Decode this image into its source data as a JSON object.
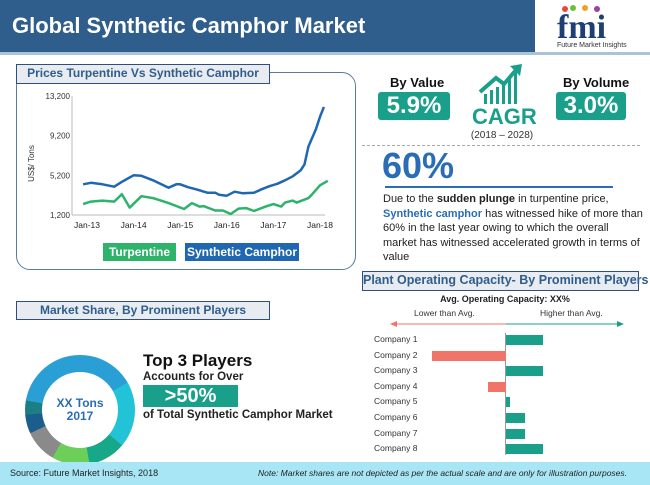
{
  "header": {
    "title": "Global Synthetic Camphor Market",
    "logo_text": "fmi",
    "logo_subtext": "Future Market Insights"
  },
  "price_panel": {
    "title": "Prices Turpentine Vs Synthetic Camphor"
  },
  "cagr": {
    "by_value_label": "By Value",
    "by_value": "5.9%",
    "label": "CAGR",
    "period": "(2018 – 2028)",
    "by_volume_label": "By Volume",
    "by_volume": "3.0%",
    "icon": "growth-chart-arrow-icon"
  },
  "highlight": {
    "value": "60%",
    "text_1": "Due to the ",
    "bold": "sudden plunge",
    "text_2": " in turpentine price, ",
    "accent": "Synthetic camphor",
    "text_3": " has witnessed hike of more than 60% in the last year owing to which the overall market has witnessed accelerated growth in terms of value"
  },
  "market_share": {
    "title": "Market Share, By Prominent Players",
    "donut_line1": "XX Tons",
    "donut_line2": "2017",
    "headline": "Top 3 Players",
    "sub": "Accounts for Over",
    "value": ">50%",
    "tail": "of Total Synthetic Camphor Market",
    "segment_colors": [
      "#2a9fd6",
      "#22c3d6",
      "#17a889",
      "#6ccf5a",
      "#8a8a8a",
      "#1b5e8e",
      "#1c7f86",
      "#2d6fb8"
    ]
  },
  "capacity": {
    "title": "Plant Operating Capacity- By Prominent Players",
    "avg": "Avg. Operating Capacity: XX%",
    "lower": "Lower than Avg.",
    "higher": "Higher than Avg."
  },
  "footer": {
    "source": "Source: Future Market Insights, 2018",
    "note": "Note: Market shares are not depicted as per the actual scale and are only for illustration purposes."
  },
  "colors": {
    "header": "#2f5d8c",
    "teal": "#1aa08a",
    "turpentine": "#2db36a",
    "camphor": "#1f67b1",
    "negative": "#f07468",
    "accent_blue": "#2a6db5"
  },
  "chart_data": [
    {
      "type": "line",
      "title": "Prices Turpentine Vs Synthetic Camphor",
      "ylabel": "US$/ Tons",
      "ylim": [
        1200,
        13200
      ],
      "yticks": [
        "13,200",
        "9,200",
        "5,200",
        "1,200"
      ],
      "ytick_values": [
        13200,
        9200,
        5200,
        1200
      ],
      "xticks": [
        "Jan-13",
        "Jan-14",
        "Jan-15",
        "Jan-16",
        "Jan-17",
        "Jan-18"
      ],
      "grid": false,
      "legend": "bottom",
      "series": [
        {
          "name": "Turpentine",
          "color": "#2db36a",
          "points": [
            [
              "2012-12",
              2300
            ],
            [
              "2013-02",
              2550
            ],
            [
              "2013-05",
              2650
            ],
            [
              "2013-08",
              2550
            ],
            [
              "2013-10",
              3300
            ],
            [
              "2013-12",
              1950
            ],
            [
              "2014-03",
              3100
            ],
            [
              "2014-06",
              2900
            ],
            [
              "2014-10",
              2400
            ],
            [
              "2015-02",
              1800
            ],
            [
              "2015-04",
              2400
            ],
            [
              "2015-06",
              2050
            ],
            [
              "2015-07",
              2100
            ],
            [
              "2015-10",
              1650
            ],
            [
              "2015-12",
              1650
            ],
            [
              "2016-02",
              1300
            ],
            [
              "2016-04",
              1850
            ],
            [
              "2016-06",
              1900
            ],
            [
              "2016-08",
              1600
            ],
            [
              "2016-11",
              2050
            ],
            [
              "2017-01",
              2300
            ],
            [
              "2017-03",
              2050
            ],
            [
              "2017-04",
              2450
            ],
            [
              "2017-06",
              2650
            ],
            [
              "2017-07",
              2450
            ],
            [
              "2017-10",
              2900
            ],
            [
              "2017-11",
              3300
            ],
            [
              "2018-01",
              4200
            ],
            [
              "2018-03",
              4650
            ]
          ]
        },
        {
          "name": "Synthetic Camphor",
          "color": "#1f67b1",
          "points": [
            [
              "2012-12",
              4300
            ],
            [
              "2013-02",
              4450
            ],
            [
              "2013-05",
              4300
            ],
            [
              "2013-08",
              4050
            ],
            [
              "2013-10",
              4550
            ],
            [
              "2014-01",
              5200
            ],
            [
              "2014-03",
              5150
            ],
            [
              "2014-06",
              4700
            ],
            [
              "2014-10",
              3950
            ],
            [
              "2014-12",
              4300
            ],
            [
              "2015-01",
              4300
            ],
            [
              "2015-03",
              4000
            ],
            [
              "2015-05",
              3800
            ],
            [
              "2015-08",
              3450
            ],
            [
              "2015-10",
              3450
            ],
            [
              "2015-11",
              3250
            ],
            [
              "2016-01",
              3150
            ],
            [
              "2016-03",
              3550
            ],
            [
              "2016-05",
              3400
            ],
            [
              "2016-08",
              3450
            ],
            [
              "2016-10",
              3800
            ],
            [
              "2016-12",
              4100
            ],
            [
              "2017-02",
              4350
            ],
            [
              "2017-04",
              4700
            ],
            [
              "2017-06",
              5100
            ],
            [
              "2017-08",
              5700
            ],
            [
              "2017-09",
              6300
            ],
            [
              "2017-10",
              8100
            ],
            [
              "2017-12",
              9900
            ],
            [
              "2018-01",
              11100
            ],
            [
              "2018-02",
              12100
            ]
          ]
        }
      ]
    },
    {
      "type": "bar",
      "orientation": "horizontal",
      "title": "Plant Operating Capacity- By Prominent Players",
      "categories": [
        "Company 1",
        "Company 2",
        "Company 3",
        "Company 4",
        "Company 5",
        "Company 6",
        "Company 7",
        "Company 8"
      ],
      "values": [
        1,
        -2,
        1,
        -0.5,
        0.1,
        0.5,
        0.5,
        1
      ]
    },
    {
      "type": "pie",
      "donut": true,
      "title": "Market Share, By Prominent Players"
    }
  ]
}
